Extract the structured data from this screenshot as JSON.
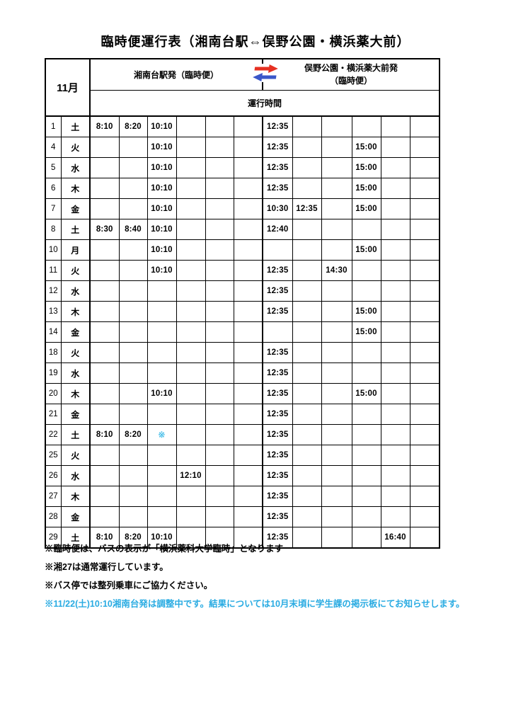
{
  "title": "臨時便運行表（湘南台駅⇔俣野公園・横浜薬大前）",
  "header": {
    "month": "11月",
    "left_section": "湘南台駅発（臨時便）",
    "right_section_line1": "俣野公園・横浜薬大前発",
    "right_section_line2": "（臨時便）",
    "sub_header": "運行時間",
    "swap_icon": "red-blue-swap-arrows-icon"
  },
  "colors": {
    "text": "#000000",
    "note_blue": "#29abe2",
    "cell_mark_blue": "#4fc1e9",
    "arrow_red": "#e63122",
    "arrow_blue": "#3a57c9",
    "border": "#000000"
  },
  "rows": [
    {
      "date": "1",
      "day": "土",
      "left": [
        "8:10",
        "8:20",
        "10:10",
        "",
        "",
        ""
      ],
      "right": [
        "12:35",
        "",
        "",
        "",
        "",
        ""
      ]
    },
    {
      "date": "4",
      "day": "火",
      "left": [
        "",
        "",
        "10:10",
        "",
        "",
        ""
      ],
      "right": [
        "12:35",
        "",
        "",
        "15:00",
        "",
        ""
      ]
    },
    {
      "date": "5",
      "day": "水",
      "left": [
        "",
        "",
        "10:10",
        "",
        "",
        ""
      ],
      "right": [
        "12:35",
        "",
        "",
        "15:00",
        "",
        ""
      ]
    },
    {
      "date": "6",
      "day": "木",
      "left": [
        "",
        "",
        "10:10",
        "",
        "",
        ""
      ],
      "right": [
        "12:35",
        "",
        "",
        "15:00",
        "",
        ""
      ]
    },
    {
      "date": "7",
      "day": "金",
      "left": [
        "",
        "",
        "10:10",
        "",
        "",
        ""
      ],
      "right": [
        "10:30",
        "12:35",
        "",
        "15:00",
        "",
        ""
      ]
    },
    {
      "date": "8",
      "day": "土",
      "left": [
        "8:30",
        "8:40",
        "10:10",
        "",
        "",
        ""
      ],
      "right": [
        "12:40",
        "",
        "",
        "",
        "",
        ""
      ]
    },
    {
      "date": "10",
      "day": "月",
      "left": [
        "",
        "",
        "10:10",
        "",
        "",
        ""
      ],
      "right": [
        "",
        "",
        "",
        "15:00",
        "",
        ""
      ]
    },
    {
      "date": "11",
      "day": "火",
      "left": [
        "",
        "",
        "10:10",
        "",
        "",
        ""
      ],
      "right": [
        "12:35",
        "",
        "14:30",
        "",
        "",
        ""
      ]
    },
    {
      "date": "12",
      "day": "水",
      "left": [
        "",
        "",
        "",
        "",
        "",
        ""
      ],
      "right": [
        "12:35",
        "",
        "",
        "",
        "",
        ""
      ]
    },
    {
      "date": "13",
      "day": "木",
      "left": [
        "",
        "",
        "",
        "",
        "",
        ""
      ],
      "right": [
        "12:35",
        "",
        "",
        "15:00",
        "",
        ""
      ]
    },
    {
      "date": "14",
      "day": "金",
      "left": [
        "",
        "",
        "",
        "",
        "",
        ""
      ],
      "right": [
        "",
        "",
        "",
        "15:00",
        "",
        ""
      ]
    },
    {
      "date": "18",
      "day": "火",
      "left": [
        "",
        "",
        "",
        "",
        "",
        ""
      ],
      "right": [
        "12:35",
        "",
        "",
        "",
        "",
        ""
      ]
    },
    {
      "date": "19",
      "day": "水",
      "left": [
        "",
        "",
        "",
        "",
        "",
        ""
      ],
      "right": [
        "12:35",
        "",
        "",
        "",
        "",
        ""
      ]
    },
    {
      "date": "20",
      "day": "木",
      "left": [
        "",
        "",
        "10:10",
        "",
        "",
        ""
      ],
      "right": [
        "12:35",
        "",
        "",
        "15:00",
        "",
        ""
      ]
    },
    {
      "date": "21",
      "day": "金",
      "left": [
        "",
        "",
        "",
        "",
        "",
        ""
      ],
      "right": [
        "12:35",
        "",
        "",
        "",
        "",
        ""
      ]
    },
    {
      "date": "22",
      "day": "土",
      "left": [
        "8:10",
        "8:20",
        "※",
        "",
        "",
        ""
      ],
      "right": [
        "12:35",
        "",
        "",
        "",
        "",
        ""
      ]
    },
    {
      "date": "25",
      "day": "火",
      "left": [
        "",
        "",
        "",
        "",
        "",
        ""
      ],
      "right": [
        "12:35",
        "",
        "",
        "",
        "",
        ""
      ]
    },
    {
      "date": "26",
      "day": "水",
      "left": [
        "",
        "",
        "",
        "12:10",
        "",
        ""
      ],
      "right": [
        "12:35",
        "",
        "",
        "",
        "",
        ""
      ]
    },
    {
      "date": "27",
      "day": "木",
      "left": [
        "",
        "",
        "",
        "",
        "",
        ""
      ],
      "right": [
        "12:35",
        "",
        "",
        "",
        "",
        ""
      ]
    },
    {
      "date": "28",
      "day": "金",
      "left": [
        "",
        "",
        "",
        "",
        "",
        ""
      ],
      "right": [
        "12:35",
        "",
        "",
        "",
        "",
        ""
      ]
    },
    {
      "date": "29",
      "day": "土",
      "left": [
        "8:10",
        "8:20",
        "10:10",
        "",
        "",
        ""
      ],
      "right": [
        "12:35",
        "",
        "",
        "",
        "16:40",
        ""
      ]
    }
  ],
  "notes": [
    {
      "text": "※臨時便は、バスの表示が「横浜薬科大学臨時」となります",
      "color": "#000000"
    },
    {
      "text": "※湘27は通常運行しています。",
      "color": "#000000"
    },
    {
      "text": "※バス停では整列乗車にご協力ください。",
      "color": "#000000"
    },
    {
      "text": "※11/22(土)10:10湘南台発は調整中です。結果については10月末頃に学生課の掲示板にてお知らせします。",
      "color": "#29abe2"
    }
  ]
}
